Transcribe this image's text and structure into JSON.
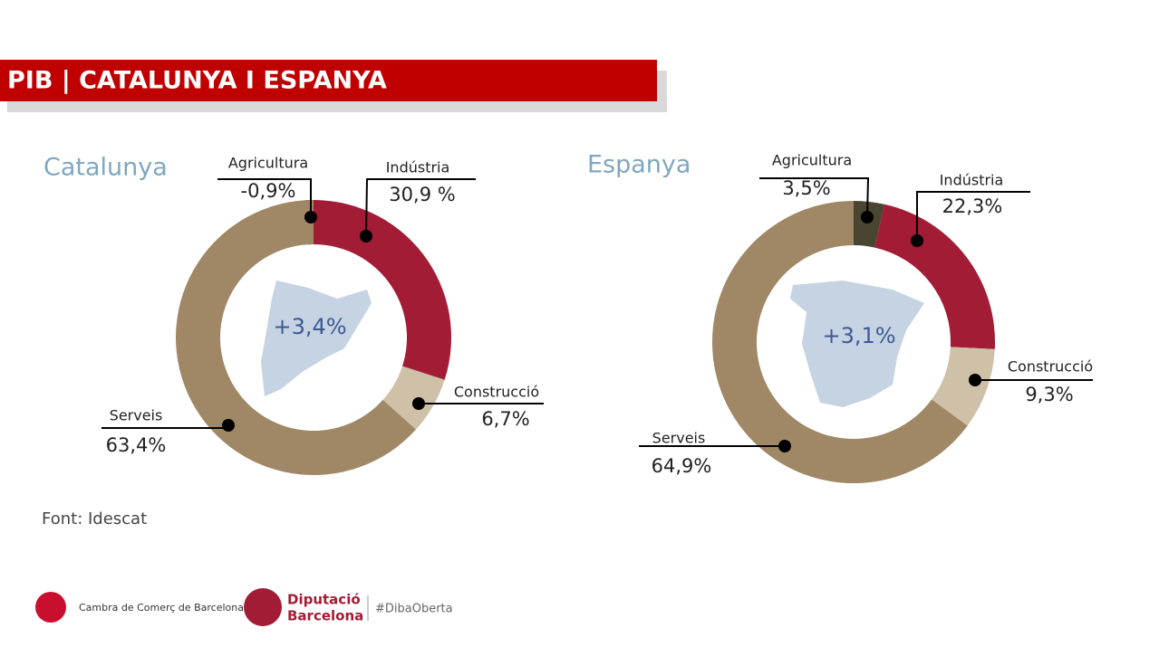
{
  "header": {
    "title": "PIB | CATALUNYA I ESPANYA"
  },
  "chart_data": [
    {
      "type": "donut",
      "title": "Catalunya",
      "center_label": "+3,4%",
      "categories": [
        "Agricultura",
        "Indústria",
        "Construcció",
        "Serveis"
      ],
      "values": [
        -0.9,
        30.9,
        6.7,
        63.4
      ],
      "value_labels": [
        "-0,9%",
        "30,9 %",
        "6,7%",
        "63,4%"
      ],
      "colors": [
        "#4a4530",
        "#a31c35",
        "#cfc0a8",
        "#a08866"
      ]
    },
    {
      "type": "donut",
      "title": "Espanya",
      "center_label": "+3,1%",
      "categories": [
        "Agricultura",
        "Indústria",
        "Construcció",
        "Serveis"
      ],
      "values": [
        3.5,
        22.3,
        9.3,
        64.9
      ],
      "value_labels": [
        "3,5%",
        "22,3%",
        "9,3%",
        "64,9%"
      ],
      "colors": [
        "#4a4530",
        "#a31c35",
        "#cfc0a8",
        "#a08866"
      ]
    }
  ],
  "source": "Font: Idescat",
  "footer": {
    "cambra": "Cambra de Comerç de Barcelona",
    "diputacio": [
      "Diputació",
      "Barcelona"
    ],
    "hashtag": "#DibaOberta"
  }
}
